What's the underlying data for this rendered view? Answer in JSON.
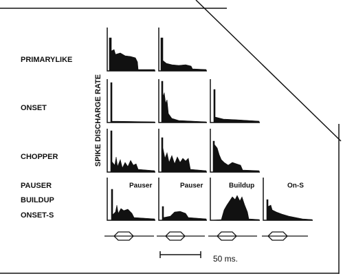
{
  "row_labels": [
    "PRIMARYLIKE",
    "ONSET",
    "CHOPPER",
    "PAUSER",
    "BUILDUP",
    "ONSET-S"
  ],
  "axis_label": "SPIKE DISCHARGE RATE",
  "panel_labels": [
    "Pauser",
    "Pauser",
    "Buildup",
    "On-S"
  ],
  "scale_bar": "50 ms."
}
